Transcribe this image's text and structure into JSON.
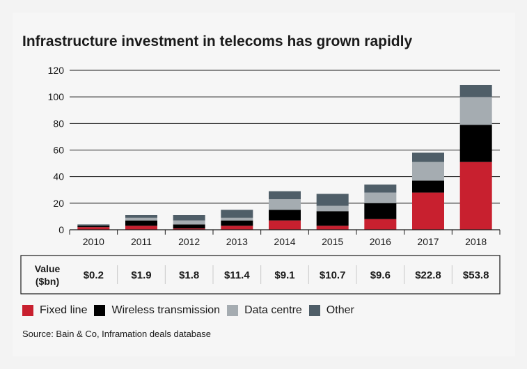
{
  "title": "Infrastructure investment in telecoms has grown rapidly",
  "source": "Source: Bain & Co, Inframation deals database",
  "value_table": {
    "label_line1": "Value",
    "label_line2": "($bn)",
    "values": [
      "$0.2",
      "$1.9",
      "$1.8",
      "$11.4",
      "$9.1",
      "$10.7",
      "$9.6",
      "$22.8",
      "$53.8"
    ]
  },
  "chart_data": {
    "type": "bar",
    "stacked": true,
    "title": "Infrastructure investment in telecoms has grown rapidly",
    "xlabel": "",
    "ylabel": "",
    "ylim": [
      0,
      120
    ],
    "yticks": [
      0,
      20,
      40,
      60,
      80,
      100,
      120
    ],
    "grid": true,
    "legend_position": "bottom",
    "categories": [
      "2010",
      "2011",
      "2012",
      "2013",
      "2014",
      "2015",
      "2016",
      "2017",
      "2018"
    ],
    "series": [
      {
        "name": "Fixed line",
        "color": "#c8202f",
        "values": [
          2,
          3,
          1,
          3,
          7,
          3,
          8,
          28,
          51
        ]
      },
      {
        "name": "Wireless transmission",
        "color": "#000000",
        "values": [
          1,
          4,
          3,
          4,
          8,
          11,
          12,
          9,
          28
        ]
      },
      {
        "name": "Data centre",
        "color": "#a5acb1",
        "values": [
          0,
          2,
          3,
          2,
          8,
          4,
          8,
          14,
          21
        ]
      },
      {
        "name": "Other",
        "color": "#4f5e68",
        "values": [
          1,
          2,
          4,
          6,
          6,
          9,
          6,
          7,
          9
        ]
      }
    ]
  }
}
